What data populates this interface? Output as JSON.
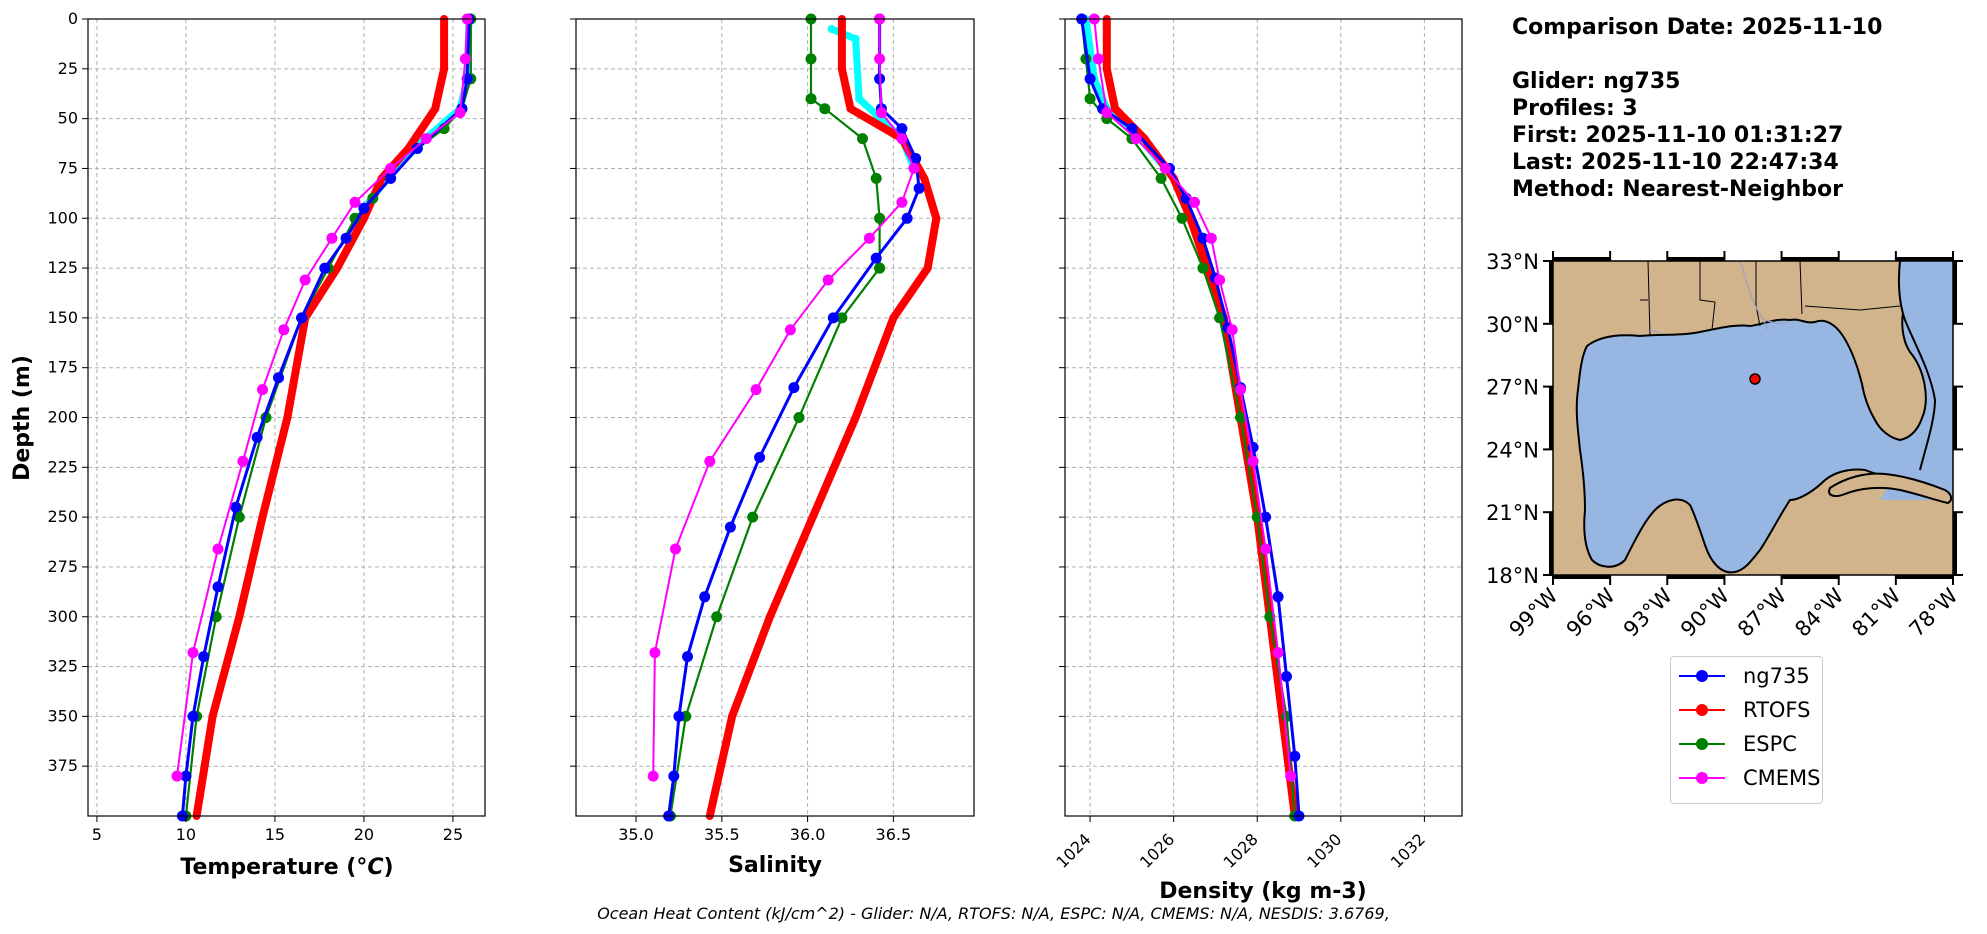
{
  "chart_data": [
    {
      "type": "line",
      "xlabel": "Temperature (°C)",
      "ylabel": "Depth (m)",
      "xlim": [
        4.5,
        26.8
      ],
      "ylim": [
        400,
        0
      ],
      "grid": true,
      "xticks": [
        "5",
        "10",
        "15",
        "20",
        "25"
      ],
      "yticks": [
        "0",
        "25",
        "50",
        "75",
        "100",
        "125",
        "150",
        "175",
        "200",
        "225",
        "250",
        "275",
        "300",
        "325",
        "350",
        "375"
      ],
      "series": [
        {
          "name": "ng735",
          "color": "#0000ff",
          "x": [
            25.9,
            25.8,
            25.5,
            23.0,
            21.5,
            20.0,
            19.0,
            17.8,
            16.5,
            15.2,
            14.0,
            12.8,
            11.8,
            11.0,
            10.4,
            10.0,
            9.8
          ],
          "y": [
            0,
            30,
            45,
            65,
            80,
            95,
            110,
            125,
            150,
            180,
            210,
            245,
            285,
            320,
            350,
            380,
            400
          ]
        },
        {
          "name": "RTOFS",
          "color": "#ff0000",
          "x": [
            24.5,
            24.5,
            24.0,
            22.5,
            21.0,
            20.0,
            18.5,
            16.7,
            15.7,
            14.3,
            13.0,
            11.5,
            10.6
          ],
          "y": [
            0,
            25,
            45,
            65,
            80,
            100,
            125,
            150,
            200,
            250,
            300,
            350,
            400
          ]
        },
        {
          "name": "ESPC",
          "color": "#008000",
          "x": [
            26.0,
            26.0,
            25.5,
            24.5,
            23.0,
            21.5,
            20.5,
            19.5,
            18.0,
            16.5,
            14.5,
            13.0,
            11.7,
            10.6,
            10.0
          ],
          "y": [
            0,
            30,
            45,
            55,
            65,
            80,
            90,
            100,
            125,
            150,
            200,
            250,
            300,
            350,
            400
          ]
        },
        {
          "name": "CMEMS",
          "color": "#ff00ff",
          "x": [
            25.8,
            25.7,
            25.4,
            23.5,
            21.5,
            19.5,
            18.2,
            16.7,
            15.5,
            14.3,
            13.2,
            11.8,
            10.4,
            9.5
          ],
          "y": [
            0,
            20,
            47,
            60,
            75,
            92,
            110,
            131,
            156,
            186,
            222,
            266,
            318,
            380
          ]
        },
        {
          "name": "",
          "color": "#00ffff",
          "x": [
            25.9,
            25.8,
            25.4,
            23.2,
            21.5,
            20.0
          ],
          "y": [
            0,
            30,
            45,
            62,
            78,
            95
          ]
        }
      ]
    },
    {
      "type": "line",
      "xlabel": "Salinity",
      "xlim": [
        34.65,
        36.97
      ],
      "ylim": [
        400,
        0
      ],
      "grid": true,
      "xticks": [
        "35.0",
        "35.5",
        "36.0",
        "36.5"
      ],
      "series": [
        {
          "name": "ng735",
          "color": "#0000ff",
          "x": [
            36.42,
            36.42,
            36.43,
            36.55,
            36.63,
            36.65,
            36.58,
            36.4,
            36.15,
            35.92,
            35.72,
            35.55,
            35.4,
            35.3,
            35.25,
            35.22,
            35.19
          ],
          "y": [
            0,
            30,
            45,
            55,
            70,
            85,
            100,
            120,
            150,
            185,
            220,
            255,
            290,
            320,
            350,
            380,
            400
          ]
        },
        {
          "name": "RTOFS",
          "color": "#ff0000",
          "x": [
            36.2,
            36.2,
            36.25,
            36.55,
            36.68,
            36.75,
            36.7,
            36.5,
            36.28,
            36.03,
            35.78,
            35.56,
            35.43
          ],
          "y": [
            0,
            25,
            45,
            60,
            80,
            100,
            125,
            150,
            200,
            250,
            300,
            350,
            400
          ]
        },
        {
          "name": "ESPC",
          "color": "#008000",
          "x": [
            36.02,
            36.02,
            36.02,
            36.1,
            36.32,
            36.4,
            36.42,
            36.42,
            36.42,
            36.2,
            35.95,
            35.68,
            35.47,
            35.29,
            35.2
          ],
          "y": [
            0,
            20,
            40,
            45,
            60,
            80,
            100,
            125,
            125,
            150,
            200,
            250,
            300,
            350,
            400
          ]
        },
        {
          "name": "CMEMS",
          "color": "#ff00ff",
          "x": [
            36.42,
            36.42,
            36.43,
            36.55,
            36.62,
            36.55,
            36.36,
            36.12,
            35.9,
            35.7,
            35.43,
            35.23,
            35.11,
            35.1
          ],
          "y": [
            0,
            20,
            47,
            60,
            75,
            92,
            110,
            131,
            156,
            186,
            222,
            266,
            318,
            380
          ]
        },
        {
          "name": "",
          "color": "#00ffff",
          "x": [
            36.14,
            36.28,
            36.3,
            36.4,
            36.55,
            36.62
          ],
          "y": [
            5,
            10,
            40,
            48,
            60,
            75
          ]
        }
      ]
    },
    {
      "type": "line",
      "xlabel": "Density (kg m-3)",
      "xlim": [
        1023.4,
        1032.9
      ],
      "ylim": [
        400,
        0
      ],
      "grid": true,
      "xticks": [
        "1024",
        "1026",
        "1028",
        "1030",
        "1032"
      ],
      "series": [
        {
          "name": "ng735",
          "color": "#0000ff",
          "x": [
            1023.8,
            1024.0,
            1024.3,
            1025.0,
            1025.9,
            1026.3,
            1026.7,
            1027.0,
            1027.3,
            1027.6,
            1027.9,
            1028.2,
            1028.5,
            1028.7,
            1028.9,
            1029.0
          ],
          "y": [
            0,
            30,
            45,
            55,
            75,
            90,
            110,
            130,
            155,
            185,
            215,
            250,
            290,
            330,
            370,
            400
          ]
        },
        {
          "name": "RTOFS",
          "color": "#ff0000",
          "x": [
            1024.4,
            1024.4,
            1024.6,
            1025.3,
            1026.0,
            1026.4,
            1026.8,
            1027.2,
            1027.6,
            1028.0,
            1028.3,
            1028.6,
            1028.9
          ],
          "y": [
            0,
            25,
            45,
            60,
            80,
            100,
            125,
            150,
            200,
            250,
            300,
            350,
            400
          ]
        },
        {
          "name": "ESPC",
          "color": "#008000",
          "x": [
            1023.8,
            1023.9,
            1024.0,
            1024.4,
            1025.0,
            1025.7,
            1026.2,
            1026.7,
            1027.1,
            1027.6,
            1028.0,
            1028.3,
            1028.7,
            1028.9
          ],
          "y": [
            0,
            20,
            40,
            50,
            60,
            80,
            100,
            125,
            150,
            200,
            250,
            300,
            350,
            400
          ]
        },
        {
          "name": "CMEMS",
          "color": "#ff00ff",
          "x": [
            1024.1,
            1024.2,
            1024.4,
            1025.1,
            1025.8,
            1026.5,
            1026.9,
            1027.1,
            1027.4,
            1027.6,
            1027.9,
            1028.2,
            1028.5,
            1028.8
          ],
          "y": [
            0,
            20,
            47,
            60,
            75,
            92,
            110,
            131,
            156,
            186,
            222,
            266,
            318,
            380
          ]
        },
        {
          "name": "",
          "color": "#00ffff",
          "x": [
            1023.9,
            1024.1,
            1024.4,
            1025.2,
            1026.0
          ],
          "y": [
            0,
            30,
            45,
            60,
            80
          ]
        }
      ]
    }
  ],
  "info": {
    "comparison_date": "Comparison Date: 2025-11-10",
    "glider": "Glider: ng735",
    "profiles": "Profiles: 3",
    "first": "First: 2025-11-10 01:31:27",
    "last": "Last: 2025-11-10 22:47:34",
    "method": "Method: Nearest-Neighbor"
  },
  "map": {
    "lon_range": [
      -99,
      -78
    ],
    "lat_range": [
      18,
      33
    ],
    "lat_ticks": [
      "33°N",
      "30°N",
      "27°N",
      "24°N",
      "21°N",
      "18°N"
    ],
    "lon_ticks": [
      "99°W",
      "96°W",
      "93°W",
      "90°W",
      "87°W",
      "84°W",
      "81°W",
      "78°W"
    ],
    "glider_position": {
      "lon": -88.6,
      "lat": 27.6
    },
    "land_color": "#d2b48c",
    "ocean_color": "#97b6e1"
  },
  "legend": [
    {
      "label": "ng735",
      "color": "#0000ff"
    },
    {
      "label": "RTOFS",
      "color": "#ff0000"
    },
    {
      "label": "ESPC",
      "color": "#008000"
    },
    {
      "label": "CMEMS",
      "color": "#ff00ff"
    }
  ],
  "footer": "Ocean Heat Content (kJ/cm^2) - Glider: N/A,  RTOFS: N/A,  ESPC: N/A,  CMEMS: N/A,  NESDIS: 3.6769,"
}
